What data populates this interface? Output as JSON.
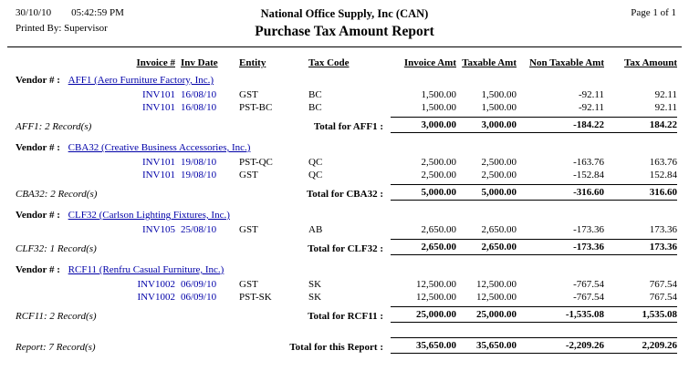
{
  "page_header": {
    "date": "30/10/10",
    "time": "05:42:59 PM",
    "company": "National Office Supply, Inc (CAN)",
    "page_info": "Page 1 of 1",
    "printed_by": "Printed By: Supervisor",
    "title": "Purchase Tax Amount Report"
  },
  "table": {
    "vendor_label": "Vendor # :",
    "columns": {
      "invoice": "Invoice #",
      "date": "Inv Date",
      "entity": "Entity",
      "tax_code": "Tax Code",
      "invoice_amt": "Invoice Amt",
      "taxable_amt": "Taxable Amt",
      "non_taxable_amt": "Non Taxable Amt",
      "tax_amount": "Tax Amount"
    },
    "groups": [
      {
        "vendor": "AFF1 (Aero Furniture Factory, Inc.)",
        "rows": [
          {
            "invoice": "INV101",
            "date": "16/08/10",
            "entity": "GST",
            "tax_code": "BC",
            "invoice_amt": "1,500.00",
            "taxable_amt": "1,500.00",
            "non_taxable_amt": "-92.11",
            "tax_amount": "92.11"
          },
          {
            "invoice": "INV101",
            "date": "16/08/10",
            "entity": "PST-BC",
            "tax_code": "BC",
            "invoice_amt": "1,500.00",
            "taxable_amt": "1,500.00",
            "non_taxable_amt": "-92.11",
            "tax_amount": "92.11"
          }
        ],
        "note": "AFF1: 2 Record(s)",
        "label": "Total for AFF1 :",
        "totals": {
          "invoice_amt": "3,000.00",
          "taxable_amt": "3,000.00",
          "non_taxable_amt": "-184.22",
          "tax_amount": "184.22"
        }
      },
      {
        "vendor": "CBA32 (Creative Business Accessories, Inc.)",
        "rows": [
          {
            "invoice": "INV101",
            "date": "19/08/10",
            "entity": "PST-QC",
            "tax_code": "QC",
            "invoice_amt": "2,500.00",
            "taxable_amt": "2,500.00",
            "non_taxable_amt": "-163.76",
            "tax_amount": "163.76"
          },
          {
            "invoice": "INV101",
            "date": "19/08/10",
            "entity": "GST",
            "tax_code": "QC",
            "invoice_amt": "2,500.00",
            "taxable_amt": "2,500.00",
            "non_taxable_amt": "-152.84",
            "tax_amount": "152.84"
          }
        ],
        "note": "CBA32: 2 Record(s)",
        "label": "Total for CBA32 :",
        "totals": {
          "invoice_amt": "5,000.00",
          "taxable_amt": "5,000.00",
          "non_taxable_amt": "-316.60",
          "tax_amount": "316.60"
        }
      },
      {
        "vendor": "CLF32 (Carlson Lighting Fixtures, Inc.)",
        "rows": [
          {
            "invoice": "INV105",
            "date": "25/08/10",
            "entity": "GST",
            "tax_code": "AB",
            "invoice_amt": "2,650.00",
            "taxable_amt": "2,650.00",
            "non_taxable_amt": "-173.36",
            "tax_amount": "173.36"
          }
        ],
        "note": "CLF32: 1 Record(s)",
        "label": "Total for CLF32 :",
        "totals": {
          "invoice_amt": "2,650.00",
          "taxable_amt": "2,650.00",
          "non_taxable_amt": "-173.36",
          "tax_amount": "173.36"
        }
      },
      {
        "vendor": "RCF11 (Renfru Casual Furniture, Inc.)",
        "rows": [
          {
            "invoice": "INV1002",
            "date": "06/09/10",
            "entity": "GST",
            "tax_code": "SK",
            "invoice_amt": "12,500.00",
            "taxable_amt": "12,500.00",
            "non_taxable_amt": "-767.54",
            "tax_amount": "767.54"
          },
          {
            "invoice": "INV1002",
            "date": "06/09/10",
            "entity": "PST-SK",
            "tax_code": "SK",
            "invoice_amt": "12,500.00",
            "taxable_amt": "12,500.00",
            "non_taxable_amt": "-767.54",
            "tax_amount": "767.54"
          }
        ],
        "note": "RCF11: 2 Record(s)",
        "label": "Total for RCF11 :",
        "totals": {
          "invoice_amt": "25,000.00",
          "taxable_amt": "25,000.00",
          "non_taxable_amt": "-1,535.08",
          "tax_amount": "1,535.08"
        }
      }
    ],
    "report_total": {
      "note": "Report: 7 Record(s)",
      "label": "Total for this Report :",
      "totals": {
        "invoice_amt": "35,650.00",
        "taxable_amt": "35,650.00",
        "non_taxable_amt": "-2,209.26",
        "tax_amount": "2,209.26"
      }
    }
  }
}
